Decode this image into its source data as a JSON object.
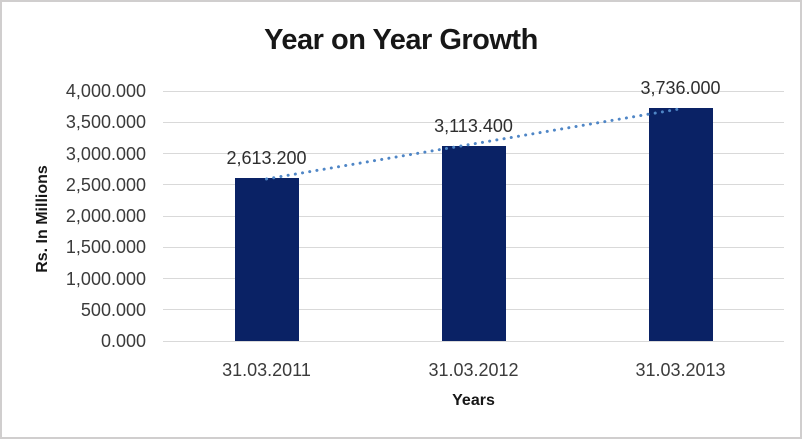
{
  "chart_data": {
    "type": "bar",
    "title": "Year on Year Growth",
    "xlabel": "Years",
    "ylabel": "Rs. In Millions",
    "categories": [
      "31.03.2011",
      "31.03.2012",
      "31.03.2013"
    ],
    "values": [
      2613.2,
      3113.4,
      3736.0
    ],
    "data_labels": [
      "2,613.200",
      "3,113.400",
      "3,736.000"
    ],
    "ylim": [
      0,
      4000
    ],
    "ytick_step": 500,
    "ytick_labels": [
      "0.000",
      "500.000",
      "1,000.000",
      "1,500.000",
      "2,000.000",
      "2,500.000",
      "3,000.000",
      "3,500.000",
      "4,000.000"
    ],
    "grid": true,
    "legend": "none",
    "trendline": {
      "type": "linear",
      "style": "dotted"
    }
  },
  "colors": {
    "bar_fill": "#0a2265",
    "trendline": "#4f86c6",
    "gridline": "#d9d9d9",
    "title_text": "#171717",
    "label_text": "#3b3b3b",
    "frame_border": "#d0cece"
  }
}
